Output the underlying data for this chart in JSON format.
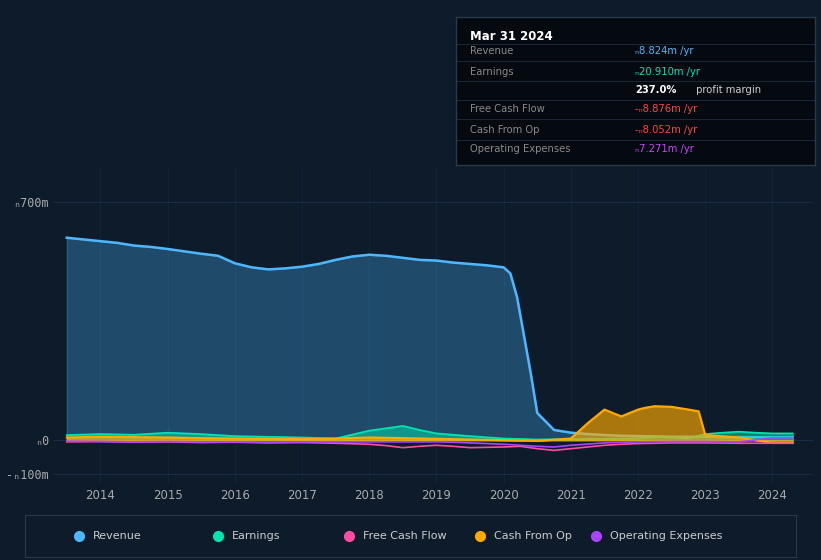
{
  "bg_color": "#0d1b2a",
  "plot_bg_color": "#0d1b2a",
  "title": "Mar 31 2024",
  "ylim": [
    -130,
    800
  ],
  "xlim": [
    2013.3,
    2024.6
  ],
  "grid_color": "#1e3050",
  "ytick_positions": [
    700,
    0,
    -100
  ],
  "ytick_labels": [
    "ₙ700m",
    "ₙ0",
    "-ₙ100m"
  ],
  "xtick_positions": [
    2014,
    2015,
    2016,
    2017,
    2018,
    2019,
    2020,
    2021,
    2022,
    2023,
    2024
  ],
  "legend": [
    {
      "label": "Revenue",
      "color": "#4db8ff"
    },
    {
      "label": "Earnings",
      "color": "#00e5b0"
    },
    {
      "label": "Free Cash Flow",
      "color": "#ff4da6"
    },
    {
      "label": "Cash From Op",
      "color": "#ffaa00"
    },
    {
      "label": "Operating Expenses",
      "color": "#aa44ff"
    }
  ],
  "revenue_x": [
    2013.5,
    2013.75,
    2014.0,
    2014.25,
    2014.5,
    2014.75,
    2015.0,
    2015.25,
    2015.5,
    2015.75,
    2016.0,
    2016.25,
    2016.5,
    2016.75,
    2017.0,
    2017.25,
    2017.5,
    2017.75,
    2018.0,
    2018.25,
    2018.5,
    2018.75,
    2019.0,
    2019.25,
    2019.5,
    2019.75,
    2020.0,
    2020.1,
    2020.2,
    2020.4,
    2020.5,
    2020.75,
    2021.0,
    2021.25,
    2021.5,
    2021.75,
    2022.0,
    2022.25,
    2022.5,
    2022.75,
    2023.0,
    2023.25,
    2023.5,
    2023.75,
    2024.0,
    2024.3
  ],
  "revenue_y": [
    595,
    590,
    585,
    580,
    572,
    568,
    562,
    555,
    548,
    542,
    520,
    508,
    502,
    505,
    510,
    518,
    530,
    540,
    545,
    542,
    536,
    530,
    528,
    522,
    518,
    514,
    508,
    490,
    420,
    200,
    80,
    30,
    22,
    18,
    15,
    13,
    12,
    11,
    10,
    10,
    10,
    9,
    9,
    8.9,
    8.8,
    8.8
  ],
  "earnings_x": [
    2013.5,
    2014.0,
    2014.5,
    2015.0,
    2015.25,
    2015.5,
    2015.75,
    2016.0,
    2016.5,
    2017.0,
    2017.5,
    2018.0,
    2018.25,
    2018.5,
    2018.75,
    2019.0,
    2019.5,
    2020.0,
    2020.5,
    2021.0,
    2021.5,
    2022.0,
    2022.25,
    2022.5,
    2022.75,
    2023.0,
    2023.25,
    2023.5,
    2023.75,
    2024.0,
    2024.3
  ],
  "earnings_y": [
    15,
    18,
    16,
    22,
    20,
    18,
    15,
    12,
    10,
    8,
    5,
    28,
    35,
    42,
    30,
    20,
    12,
    5,
    2,
    3,
    4,
    5,
    10,
    8,
    5,
    18,
    22,
    25,
    22,
    20,
    20
  ],
  "cashop_x": [
    2013.5,
    2014.0,
    2014.5,
    2015.0,
    2015.5,
    2016.0,
    2016.5,
    2017.0,
    2017.5,
    2018.0,
    2018.5,
    2019.0,
    2019.5,
    2020.0,
    2020.5,
    2021.0,
    2021.25,
    2021.5,
    2021.75,
    2022.0,
    2022.1,
    2022.25,
    2022.5,
    2022.75,
    2022.9,
    2023.0,
    2023.5,
    2024.0,
    2024.3
  ],
  "cashop_y": [
    8,
    10,
    9,
    8,
    6,
    5,
    4,
    3,
    5,
    8,
    6,
    4,
    2,
    0,
    -2,
    5,
    50,
    90,
    70,
    90,
    95,
    100,
    98,
    90,
    85,
    15,
    8,
    -8,
    -8
  ],
  "fcf_x": [
    2013.5,
    2014.0,
    2014.5,
    2015.0,
    2015.5,
    2016.0,
    2016.5,
    2017.0,
    2017.5,
    2018.0,
    2018.25,
    2018.5,
    2018.75,
    2019.0,
    2019.25,
    2019.5,
    2020.0,
    2020.25,
    2020.5,
    2020.75,
    2021.0,
    2021.25,
    2021.5,
    2021.75,
    2022.0,
    2022.5,
    2023.0,
    2023.5,
    2024.0,
    2024.3
  ],
  "fcf_y": [
    -5,
    -4,
    -6,
    -5,
    -7,
    -6,
    -8,
    -7,
    -9,
    -12,
    -16,
    -22,
    -18,
    -15,
    -18,
    -22,
    -20,
    -18,
    -25,
    -30,
    -25,
    -20,
    -15,
    -12,
    -10,
    -8,
    -8,
    -9,
    -9,
    -8.9
  ],
  "opex_x": [
    2013.5,
    2014.0,
    2014.5,
    2015.0,
    2015.5,
    2016.0,
    2016.5,
    2017.0,
    2017.5,
    2018.0,
    2018.5,
    2019.0,
    2019.25,
    2019.5,
    2020.0,
    2020.25,
    2020.5,
    2020.75,
    2021.0,
    2021.5,
    2022.0,
    2022.5,
    2023.0,
    2023.5,
    2024.0,
    2024.3
  ],
  "opex_y": [
    -3,
    -4,
    -5,
    -4,
    -5,
    -5,
    -6,
    -5,
    -5,
    -5,
    -5,
    -5,
    -6,
    -8,
    -12,
    -15,
    -18,
    -20,
    -15,
    -8,
    -5,
    -4,
    -4,
    -5,
    7,
    7
  ],
  "info_title": "Mar 31 2024",
  "info_rows": [
    {
      "label": "Revenue",
      "value": "ₙ8.824m /yr",
      "vcolor": "#4db8ff"
    },
    {
      "label": "Earnings",
      "value": "ₙ20.910m /yr",
      "vcolor": "#00e5b0"
    },
    {
      "label": "",
      "value": "237.0%",
      "suffix": " profit margin",
      "vcolor": "#ffffff",
      "bold": true
    },
    {
      "label": "Free Cash Flow",
      "value": "-ₙ8.876m /yr",
      "vcolor": "#ff4444"
    },
    {
      "label": "Cash From Op",
      "value": "-ₙ8.052m /yr",
      "vcolor": "#ff4444"
    },
    {
      "label": "Operating Expenses",
      "value": "ₙ7.271m /yr",
      "vcolor": "#cc44ff"
    }
  ]
}
